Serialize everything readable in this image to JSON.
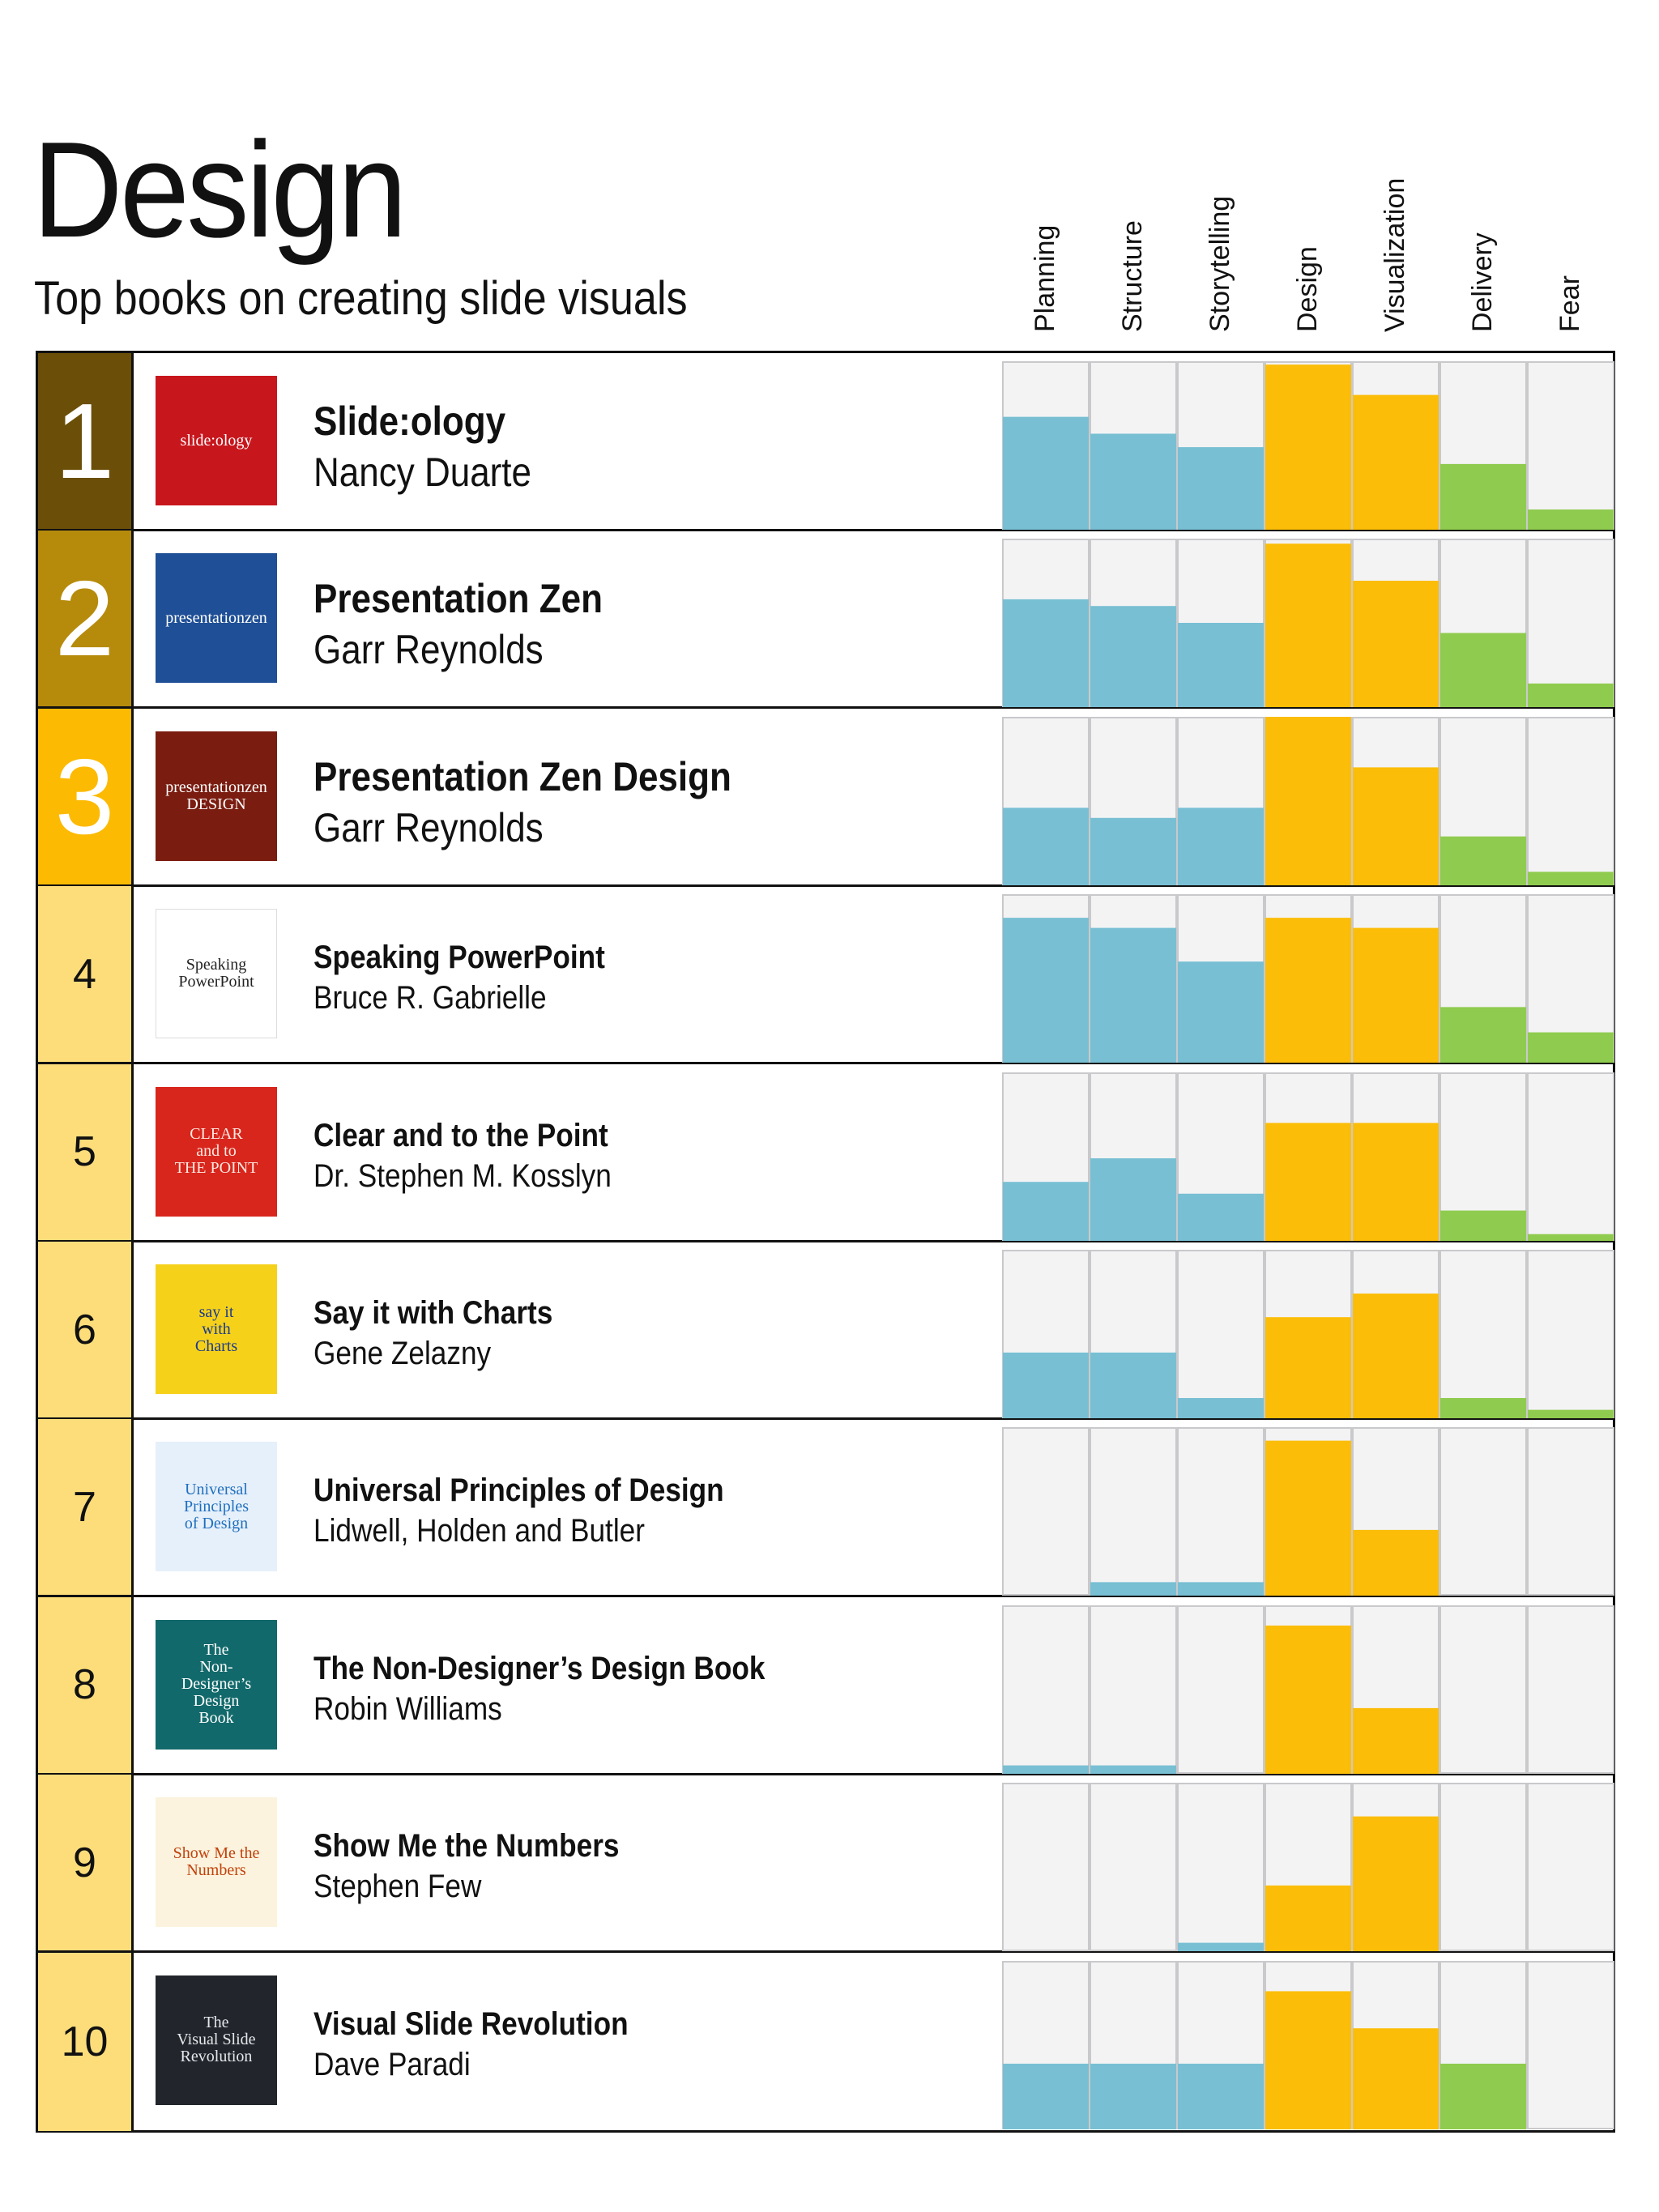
{
  "header": {
    "title": "Design",
    "subtitle": "Top books on creating slide visuals"
  },
  "colors": {
    "rank_1": "#6b4f08",
    "rank_2": "#b68b0c",
    "rank_3": "#fcba03",
    "rank_rest": "#fcdd7a",
    "bar_blue": "#78bfd3",
    "bar_yellow": "#fbbd07",
    "bar_green": "#8fcb4e",
    "cell_bg": "#f3f3f4"
  },
  "chart_data": {
    "type": "bar",
    "categories": [
      "Planning",
      "Structure",
      "Storytelling",
      "Design",
      "Visualization",
      "Delivery",
      "Fear"
    ],
    "category_colors": [
      "blue",
      "blue",
      "blue",
      "yellow",
      "yellow",
      "green",
      "green"
    ],
    "ylim": [
      0,
      100
    ],
    "rows": [
      {
        "rank": "1",
        "title": "Slide:ology",
        "author": "Nancy Duarte",
        "values": [
          67,
          57,
          49,
          98,
          80,
          39,
          12
        ]
      },
      {
        "rank": "2",
        "title": "Presentation Zen",
        "author": "Garr Reynolds",
        "values": [
          64,
          60,
          50,
          97,
          75,
          44,
          14
        ]
      },
      {
        "rank": "3",
        "title": "Presentation Zen Design",
        "author": "Garr Reynolds",
        "values": [
          46,
          40,
          46,
          100,
          70,
          29,
          8
        ]
      },
      {
        "rank": "4",
        "title": "Speaking PowerPoint",
        "author": "Bruce R. Gabrielle",
        "values": [
          86,
          80,
          60,
          86,
          80,
          33,
          18
        ]
      },
      {
        "rank": "5",
        "title": "Clear and to the Point",
        "author": "Dr. Stephen M. Kosslyn",
        "values": [
          35,
          49,
          28,
          70,
          70,
          18,
          4
        ]
      },
      {
        "rank": "6",
        "title": "Say it with Charts",
        "author": "Gene Zelazny",
        "values": [
          39,
          39,
          12,
          60,
          74,
          12,
          5
        ]
      },
      {
        "rank": "7",
        "title": "Universal Principles of Design",
        "author": "Lidwell, Holden and Butler",
        "values": [
          0,
          8,
          8,
          92,
          39,
          0,
          0
        ]
      },
      {
        "rank": "8",
        "title": "The Non-Designer’s Design Book",
        "author": "Robin Williams",
        "values": [
          5,
          5,
          0,
          88,
          39,
          0,
          0
        ]
      },
      {
        "rank": "9",
        "title": "Show Me the Numbers",
        "author": "Stephen Few",
        "values": [
          0,
          0,
          5,
          39,
          80,
          0,
          0
        ]
      },
      {
        "rank": "10",
        "title": "Visual Slide Revolution",
        "author": "Dave Paradi",
        "values": [
          39,
          39,
          39,
          82,
          60,
          39,
          0
        ]
      }
    ]
  },
  "covers": [
    {
      "lines": [
        "slide:ology"
      ],
      "bg": "#c8161d",
      "fg": "#ffffff"
    },
    {
      "lines": [
        "presentationzen"
      ],
      "bg": "#1f4f96",
      "fg": "#ffffff"
    },
    {
      "lines": [
        "presentationzen",
        "DESIGN"
      ],
      "bg": "#7a1c10",
      "fg": "#ffffff"
    },
    {
      "lines": [
        "Speaking",
        "PowerPoint"
      ],
      "bg": "#ffffff",
      "fg": "#222222"
    },
    {
      "lines": [
        "CLEAR",
        "and to",
        "THE POINT"
      ],
      "bg": "#d8261d",
      "fg": "#ffe9e0"
    },
    {
      "lines": [
        "say it",
        "with",
        "Charts"
      ],
      "bg": "#f6d11a",
      "fg": "#1b3b8f"
    },
    {
      "lines": [
        "Universal Principles",
        "of Design"
      ],
      "bg": "#e6f0fa",
      "fg": "#1f6fbf"
    },
    {
      "lines": [
        "The",
        "Non-",
        "Designer’s",
        "Design",
        "Book"
      ],
      "bg": "#12696b",
      "fg": "#ffffff"
    },
    {
      "lines": [
        "Show Me the Numbers"
      ],
      "bg": "#fbf3dd",
      "fg": "#c2410c"
    },
    {
      "lines": [
        "The",
        "Visual Slide",
        "Revolution"
      ],
      "bg": "#22262c",
      "fg": "#e5e7eb"
    }
  ]
}
